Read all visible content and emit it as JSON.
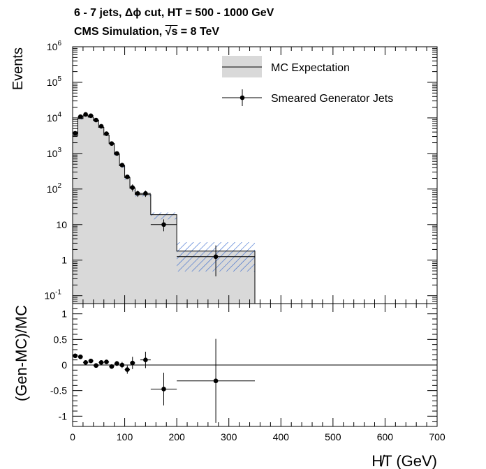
{
  "header": {
    "line1": "6 - 7 jets, Δϕ cut, HT = 500 - 1000 GeV",
    "line2_prefix": "CMS Simulation, ",
    "line2_sqrt": "√s",
    "line2_suffix": " = 8 TeV"
  },
  "chart_data": [
    {
      "type": "histogram",
      "ylabel": "Events",
      "yscale": "log",
      "ylim": [
        0.06,
        1000000
      ],
      "xlim": [
        0,
        700
      ],
      "ytick_labels": [
        {
          "value": 0.1,
          "base": "10",
          "exp": "-1"
        },
        {
          "value": 1,
          "base": "1",
          "exp": ""
        },
        {
          "value": 10,
          "base": "10",
          "exp": ""
        },
        {
          "value": 100,
          "base": "10",
          "exp": "2"
        },
        {
          "value": 1000,
          "base": "10",
          "exp": "3"
        },
        {
          "value": 10000,
          "base": "10",
          "exp": "4"
        },
        {
          "value": 100000,
          "base": "10",
          "exp": "5"
        },
        {
          "value": 1000000,
          "base": "10",
          "exp": "6"
        }
      ],
      "legend": {
        "placement": "top-right",
        "entries": [
          {
            "label": "MC Expectation"
          },
          {
            "label": "Smeared Generator Jets"
          }
        ]
      },
      "mc_expectation": {
        "name": "MC Expectation",
        "bin_edges": [
          0,
          10,
          20,
          30,
          40,
          50,
          60,
          70,
          80,
          90,
          100,
          110,
          120,
          130,
          150,
          200,
          350
        ],
        "values": [
          3200,
          9500,
          11500,
          10500,
          8500,
          5400,
          3300,
          1900,
          950,
          450,
          210,
          105,
          70,
          70,
          19,
          1.8
        ],
        "uncert_low": [
          3000,
          9000,
          11000,
          10000,
          8000,
          5100,
          3100,
          1780,
          880,
          400,
          180,
          90,
          62,
          62,
          14,
          0.48
        ],
        "uncert_high": [
          3400,
          10000,
          12000,
          11000,
          9000,
          5700,
          3500,
          2020,
          1030,
          500,
          245,
          125,
          80,
          80,
          22,
          3.2
        ],
        "color": "#d9d9d9",
        "hatch_color": "#3366cc"
      },
      "smeared_generator_jets": {
        "name": "Smeared Generator Jets",
        "x": [
          5,
          15,
          25,
          35,
          45,
          55,
          65,
          75,
          85,
          95,
          105,
          115,
          125,
          140,
          175,
          275
        ],
        "y": [
          3700,
          10800,
          12500,
          11500,
          8700,
          5800,
          3600,
          1900,
          1000,
          470,
          220,
          110,
          75,
          75,
          10,
          1.25
        ],
        "yerr_low": [
          3550,
          10500,
          12200,
          11200,
          8500,
          5650,
          3500,
          1830,
          950,
          430,
          190,
          85,
          60,
          60,
          6.5,
          0.35
        ],
        "yerr_high": [
          3850,
          11100,
          12800,
          11800,
          8900,
          5950,
          3700,
          1970,
          1050,
          510,
          250,
          135,
          90,
          90,
          14,
          2.6
        ],
        "xerr": [
          5,
          5,
          5,
          5,
          5,
          5,
          5,
          5,
          5,
          5,
          5,
          5,
          5,
          10,
          25,
          75
        ],
        "color": "#000000"
      }
    },
    {
      "type": "scatter",
      "ylabel": "(Gen-MC)/MC",
      "xlabel": "H̸T (GeV)",
      "xlim": [
        0,
        700
      ],
      "ylim": [
        -1.2,
        1.2
      ],
      "xticks": [
        0,
        100,
        200,
        300,
        400,
        500,
        600,
        700
      ],
      "yticks": [
        -1,
        -0.5,
        0,
        0.5,
        1
      ],
      "ytick_labels": [
        "-1",
        "-0.5",
        "0",
        "0.5",
        "1"
      ],
      "xtick_labels": [
        "0",
        "100",
        "200",
        "300",
        "400",
        "500",
        "600",
        "700"
      ],
      "x": [
        5,
        15,
        25,
        35,
        45,
        55,
        65,
        75,
        85,
        95,
        105,
        115,
        140,
        175,
        275
      ],
      "y": [
        0.18,
        0.16,
        0.05,
        0.08,
        -0.01,
        0.05,
        0.06,
        -0.03,
        0.03,
        0.0,
        -0.09,
        0.04,
        0.1,
        -0.47,
        -0.31
      ],
      "yerr": [
        0.02,
        0.02,
        0.02,
        0.02,
        0.03,
        0.03,
        0.03,
        0.04,
        0.05,
        0.06,
        0.08,
        0.12,
        0.16,
        0.32,
        0.82
      ],
      "xerr": [
        5,
        5,
        5,
        5,
        5,
        5,
        5,
        5,
        5,
        5,
        5,
        5,
        10,
        25,
        75
      ]
    }
  ]
}
